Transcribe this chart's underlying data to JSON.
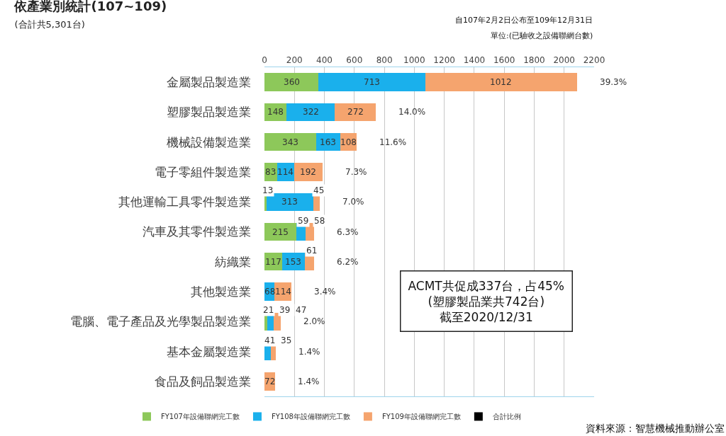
{
  "chart_data": {
    "type": "bar",
    "orientation": "horizontal",
    "stacked": true,
    "title": "依產業別統計(107~109)",
    "subtitle": "(合計共5,301台)",
    "categories": [
      "金屬製品製造業",
      "塑膠製品製造業",
      "機械設備製造業",
      "電子零組件製造業",
      "其他運輸工具零件製造業",
      "汽車及其零件製造業",
      "紡織業",
      "其他製造業",
      "電腦、電子產品及光學製品製造業",
      "基本金屬製造業",
      "食品及飼品製造業"
    ],
    "series": [
      {
        "name": "FY107年設備聯網完工數",
        "color": "#8dc85a",
        "values": [
          360,
          148,
          343,
          83,
          13,
          215,
          117,
          null,
          21,
          null,
          null
        ]
      },
      {
        "name": "FY108年設備聯網完工數",
        "color": "#1ab0ec",
        "values": [
          713,
          322,
          163,
          114,
          313,
          59,
          153,
          68,
          39,
          41,
          null
        ]
      },
      {
        "name": "FY109年設備聯網完工數",
        "color": "#f5a46e",
        "values": [
          1012,
          272,
          108,
          192,
          45,
          58,
          61,
          114,
          47,
          35,
          72
        ]
      },
      {
        "name": "合計比例",
        "color": "#000000",
        "values": [
          null,
          null,
          null,
          null,
          null,
          null,
          null,
          null,
          null,
          null,
          null
        ]
      }
    ],
    "data_labels": true,
    "xlim": [
      0,
      2200
    ],
    "xticks": [
      0,
      200,
      400,
      600,
      800,
      1000,
      1200,
      1400,
      1600,
      1800,
      2000,
      2200
    ],
    "grid": "x",
    "legend": "bottom",
    "annotations": [
      {
        "text": "39.3%",
        "x": 2085,
        "y": "金屬製品製造業"
      },
      {
        "text": "14.0%",
        "x": 742,
        "y": "塑膠製品製造業"
      },
      {
        "text": "11.6%",
        "x": 614,
        "y": "機械設備製造業"
      },
      {
        "text": "7.3%",
        "x": 389,
        "y": "電子零組件製造業"
      },
      {
        "text": "7.0%",
        "x": 371,
        "y": "其他運輸工具零件製造業"
      },
      {
        "text": "6.3%",
        "x": 332,
        "y": "汽車及其零件製造業"
      },
      {
        "text": "6.2%",
        "x": 331,
        "y": "紡織業"
      },
      {
        "text": "3.4%",
        "x": 182,
        "y": "其他製造業"
      },
      {
        "text": "2.0%",
        "x": 107,
        "y": "電腦、電子產品及光學製品製造業"
      },
      {
        "text": "1.4%",
        "x": 76,
        "y": "基本金屬製造業"
      },
      {
        "text": "1.4%",
        "x": 72,
        "y": "食品及飼品製造業"
      },
      "自107年2月2日公布至109年12月31日",
      "單位:(已驗收之設備聯網台數)",
      "ACMT共促成337台，占45%\n(塑膠製品業共742台)\n截至2020/12/31",
      "資料來源：智慧機械推動辦公室"
    ]
  }
}
